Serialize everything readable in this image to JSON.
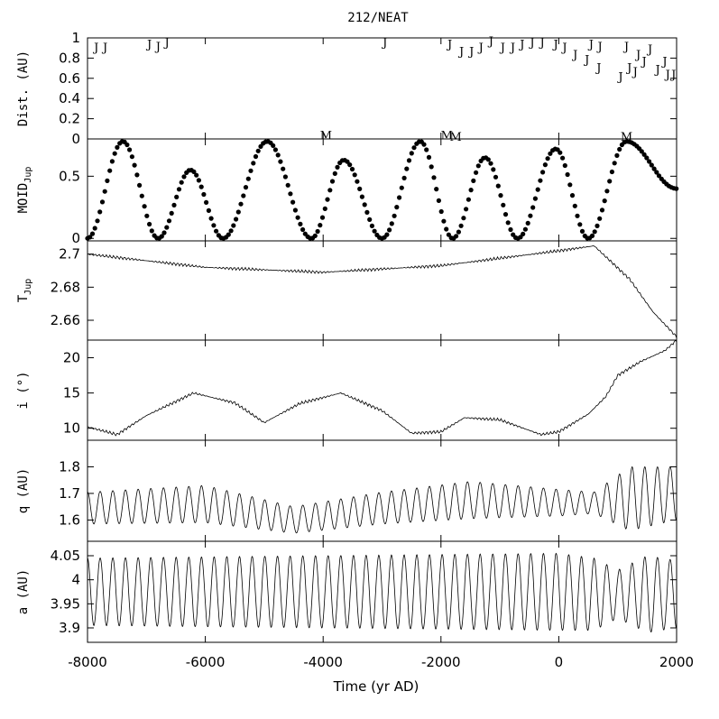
{
  "chart_data": {
    "type": "line",
    "title": "212/NEAT",
    "xlabel": "Time (yr AD)",
    "xlim": [
      -8000,
      2000
    ],
    "x_ticks": [
      -8000,
      -6000,
      -4000,
      -2000,
      0,
      2000
    ],
    "x_tick_labels": [
      "-8000",
      "-6000",
      "-4000",
      "-2000",
      "0",
      "2000"
    ],
    "panels": [
      {
        "key": "dist",
        "ylabel": "Dist. (AU)",
        "ylim": [
          0,
          1.0
        ],
        "yticks": [
          0,
          0.2,
          0.4,
          0.6,
          0.8,
          1
        ],
        "ytick_labels": [
          "0",
          "0.2",
          "0.4",
          "0.6",
          "0.8",
          "1"
        ],
        "series_type": "markers",
        "markers": [
          {
            "x": -7850,
            "y": 0.92,
            "label": "J"
          },
          {
            "x": -7700,
            "y": 0.92,
            "label": "J"
          },
          {
            "x": -6950,
            "y": 0.95,
            "label": "J"
          },
          {
            "x": -6800,
            "y": 0.93,
            "label": "J"
          },
          {
            "x": -6650,
            "y": 0.97,
            "label": "J"
          },
          {
            "x": -2950,
            "y": 0.97,
            "label": "J"
          },
          {
            "x": -1850,
            "y": 0.95,
            "label": "J"
          },
          {
            "x": -1650,
            "y": 0.88,
            "label": "J"
          },
          {
            "x": -1480,
            "y": 0.88,
            "label": "J"
          },
          {
            "x": -1320,
            "y": 0.92,
            "label": "J"
          },
          {
            "x": -1150,
            "y": 0.98,
            "label": "J"
          },
          {
            "x": -950,
            "y": 0.92,
            "label": "J"
          },
          {
            "x": -780,
            "y": 0.92,
            "label": "J"
          },
          {
            "x": -620,
            "y": 0.95,
            "label": "J"
          },
          {
            "x": -450,
            "y": 0.97,
            "label": "J"
          },
          {
            "x": -280,
            "y": 0.97,
            "label": "J"
          },
          {
            "x": -50,
            "y": 0.95,
            "label": "J"
          },
          {
            "x": 100,
            "y": 0.92,
            "label": "J"
          },
          {
            "x": 280,
            "y": 0.85,
            "label": "J"
          },
          {
            "x": 480,
            "y": 0.8,
            "label": "J"
          },
          {
            "x": 550,
            "y": 0.95,
            "label": "J"
          },
          {
            "x": 700,
            "y": 0.93,
            "label": "J"
          },
          {
            "x": 680,
            "y": 0.72,
            "label": "J"
          },
          {
            "x": 1050,
            "y": 0.63,
            "label": "J"
          },
          {
            "x": 1150,
            "y": 0.93,
            "label": "J"
          },
          {
            "x": 1200,
            "y": 0.72,
            "label": "J"
          },
          {
            "x": 1300,
            "y": 0.68,
            "label": "J"
          },
          {
            "x": 1350,
            "y": 0.85,
            "label": "J"
          },
          {
            "x": 1450,
            "y": 0.78,
            "label": "J"
          },
          {
            "x": 1550,
            "y": 0.9,
            "label": "J"
          },
          {
            "x": 1680,
            "y": 0.7,
            "label": "J"
          },
          {
            "x": 1800,
            "y": 0.78,
            "label": "J"
          },
          {
            "x": 1850,
            "y": 0.65,
            "label": "J"
          },
          {
            "x": 1950,
            "y": 0.65,
            "label": "J"
          },
          {
            "x": -3950,
            "y": 0.05,
            "label": "M"
          },
          {
            "x": -1900,
            "y": 0.05,
            "label": "M"
          },
          {
            "x": -1750,
            "y": 0.0,
            "label": "M"
          },
          {
            "x": 1150,
            "y": 0.02,
            "label": "M"
          }
        ]
      },
      {
        "key": "moid",
        "ylabel": "MOID",
        "ylabel_sub": "Jup",
        "ylim": [
          -0.02,
          0.8
        ],
        "yticks": [
          0,
          0.5
        ],
        "ytick_labels": [
          "0",
          "0.5"
        ],
        "series_type": "dots",
        "period": 2300,
        "minima_at": [
          -8000,
          -6800,
          -5700,
          -4200,
          -3000,
          -1800,
          -700,
          500
        ],
        "maxima": [
          {
            "x": -7400,
            "y": 0.78
          },
          {
            "x": -6250,
            "y": 0.55
          },
          {
            "x": -4950,
            "y": 0.78
          },
          {
            "x": -3650,
            "y": 0.63
          },
          {
            "x": -2350,
            "y": 0.78
          },
          {
            "x": -1250,
            "y": 0.65
          },
          {
            "x": -50,
            "y": 0.72
          },
          {
            "x": 1150,
            "y": 0.78
          }
        ]
      },
      {
        "key": "tjup",
        "ylabel": "T",
        "ylabel_sub": "Jup",
        "ylim": [
          2.648,
          2.708
        ],
        "yticks": [
          2.66,
          2.68,
          2.7
        ],
        "ytick_labels": [
          "2.66",
          "2.68",
          "2.7"
        ],
        "series_type": "line",
        "x": [
          -8000,
          -6000,
          -4000,
          -2000,
          0,
          600,
          1200,
          1600,
          2000
        ],
        "y": [
          2.7,
          2.692,
          2.689,
          2.693,
          2.702,
          2.705,
          2.685,
          2.665,
          2.65
        ]
      },
      {
        "key": "incl",
        "ylabel": "i (°)",
        "ylim": [
          8.3,
          22.5
        ],
        "yticks": [
          10,
          15,
          20
        ],
        "ytick_labels": [
          "10",
          "15",
          "20"
        ],
        "series_type": "line",
        "x": [
          -8000,
          -7500,
          -7000,
          -6200,
          -5500,
          -5000,
          -4400,
          -3700,
          -3000,
          -2500,
          -2000,
          -1600,
          -1000,
          -300,
          0,
          500,
          800,
          1000,
          1400,
          1800,
          2000
        ],
        "y": [
          10.2,
          9.1,
          11.8,
          15,
          13.6,
          10.8,
          13.5,
          15,
          12.5,
          9.3,
          9.5,
          11.5,
          11.2,
          9.1,
          9.5,
          12,
          14.5,
          17.5,
          19.5,
          21,
          22.5
        ]
      },
      {
        "key": "q",
        "ylabel": "q (AU)",
        "ylim": [
          1.52,
          1.9
        ],
        "yticks": [
          1.6,
          1.7,
          1.8
        ],
        "ytick_labels": [
          "1.6",
          "1.7",
          "1.8"
        ],
        "series_type": "oscillation",
        "period": 215,
        "center": [
          [
            -8000,
            1.645
          ],
          [
            -6000,
            1.66
          ],
          [
            -4500,
            1.6
          ],
          [
            -3000,
            1.645
          ],
          [
            -1500,
            1.675
          ],
          [
            0,
            1.665
          ],
          [
            600,
            1.665
          ],
          [
            2000,
            1.7
          ]
        ],
        "amplitude": [
          [
            -8000,
            0.06
          ],
          [
            -6000,
            0.07
          ],
          [
            -4500,
            0.05
          ],
          [
            -3000,
            0.06
          ],
          [
            -1500,
            0.07
          ],
          [
            0,
            0.05
          ],
          [
            600,
            0.04
          ],
          [
            1200,
            0.12
          ],
          [
            2000,
            0.1
          ]
        ]
      },
      {
        "key": "a",
        "ylabel": "a (AU)",
        "ylim": [
          3.87,
          4.08
        ],
        "yticks": [
          3.9,
          3.95,
          4,
          4.05
        ],
        "ytick_labels": [
          "3.9",
          "3.95",
          "4",
          "4.05"
        ],
        "series_type": "oscillation",
        "period": 215,
        "center": [
          [
            -8000,
            3.975
          ],
          [
            0,
            3.975
          ],
          [
            600,
            3.97
          ],
          [
            2000,
            3.97
          ]
        ],
        "amplitude": [
          [
            -8000,
            0.07
          ],
          [
            -4000,
            0.075
          ],
          [
            0,
            0.08
          ],
          [
            600,
            0.075
          ],
          [
            1000,
            0.05
          ],
          [
            1500,
            0.08
          ],
          [
            2000,
            0.07
          ]
        ]
      }
    ],
    "grid": false
  }
}
